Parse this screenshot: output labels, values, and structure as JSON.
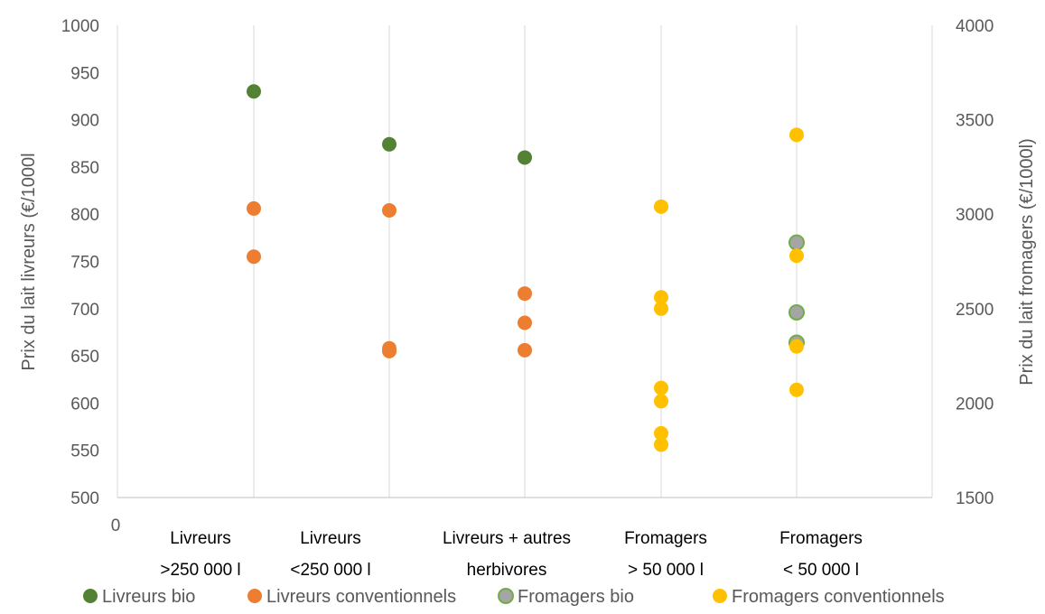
{
  "chart_data": {
    "type": "scatter",
    "categories": [
      [
        "Livreurs",
        ">250 000 l"
      ],
      [
        "Livreurs",
        "<250 000 l"
      ],
      [
        "Livreurs + autres",
        "herbivores"
      ],
      [
        "Fromagers",
        "> 50 000 l"
      ],
      [
        "Fromagers",
        "< 50 000 l"
      ]
    ],
    "x_origin_label": "0",
    "ylabel": "Prix du lait livreurs (€/1000l",
    "y2label": "Prix du lait fromagers (€/1000l)",
    "ylim": [
      500,
      1000
    ],
    "yticks": [
      500,
      550,
      600,
      650,
      700,
      750,
      800,
      850,
      900,
      950,
      1000
    ],
    "y2lim": [
      1500,
      4000
    ],
    "y2ticks": [
      1500,
      2000,
      2500,
      3000,
      3500,
      4000
    ],
    "grid": "vertical",
    "legend_position": "bottom",
    "series": [
      {
        "name": "Livreurs bio",
        "axis": "left",
        "color": "#548235",
        "points": [
          {
            "category": 1,
            "y": 930
          },
          {
            "category": 2,
            "y": 874
          },
          {
            "category": 3,
            "y": 860
          }
        ]
      },
      {
        "name": "Livreurs conventionnels",
        "axis": "left",
        "color": "#ED7D31",
        "points": [
          {
            "category": 1,
            "y": 806
          },
          {
            "category": 1,
            "y": 755
          },
          {
            "category": 2,
            "y": 804
          },
          {
            "category": 2,
            "y": 658
          },
          {
            "category": 2,
            "y": 655
          },
          {
            "category": 3,
            "y": 716
          },
          {
            "category": 3,
            "y": 685
          },
          {
            "category": 3,
            "y": 656
          }
        ]
      },
      {
        "name": "Fromagers bio",
        "axis": "right",
        "color": "#A5A5A5",
        "stroke": "#70AD47",
        "points": [
          {
            "category": 5,
            "y": 2850
          },
          {
            "category": 5,
            "y": 2480
          },
          {
            "category": 5,
            "y": 2320
          }
        ]
      },
      {
        "name": "Fromagers conventionnels",
        "axis": "right",
        "color": "#FFC000",
        "points": [
          {
            "category": 4,
            "y": 3040
          },
          {
            "category": 4,
            "y": 2560
          },
          {
            "category": 4,
            "y": 2500
          },
          {
            "category": 4,
            "y": 2080
          },
          {
            "category": 4,
            "y": 2010
          },
          {
            "category": 4,
            "y": 1840
          },
          {
            "category": 4,
            "y": 1780
          },
          {
            "category": 5,
            "y": 3420
          },
          {
            "category": 5,
            "y": 2780
          },
          {
            "category": 5,
            "y": 2300
          },
          {
            "category": 5,
            "y": 2070
          }
        ]
      }
    ]
  }
}
